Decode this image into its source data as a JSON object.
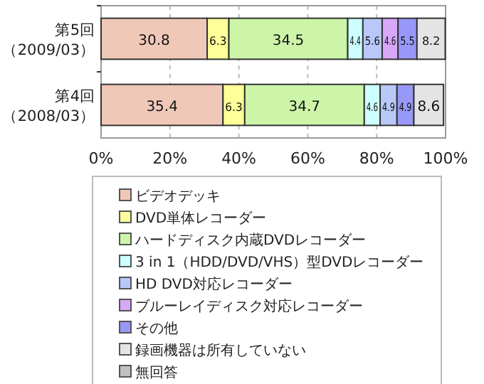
{
  "chart_data": {
    "type": "bar",
    "orientation": "horizontal",
    "stacked": true,
    "data_labels": true,
    "grid": "x",
    "legend": "bottom",
    "categories": [
      "第5回（2009/03）",
      "第4回（2008/03）"
    ],
    "xlim": [
      0,
      100
    ],
    "xticks": [
      {
        "value": 0,
        "label": "0%"
      },
      {
        "value": 20,
        "label": "20%"
      },
      {
        "value": 40,
        "label": "40%"
      },
      {
        "value": 60,
        "label": "60%"
      },
      {
        "value": 80,
        "label": "80%"
      },
      {
        "value": 100,
        "label": "100%"
      }
    ],
    "series": [
      {
        "name": "ビデオデッキ",
        "color": "#f0c8b8",
        "values": [
          30.8,
          35.4
        ]
      },
      {
        "name": "DVD単体レコーダー",
        "color": "#ffff99",
        "values": [
          6.3,
          6.3
        ]
      },
      {
        "name": "ハードディスク内蔵DVDレコーダー",
        "color": "#ccf5a8",
        "values": [
          34.5,
          34.7
        ]
      },
      {
        "name": "3 in 1（HDD/DVD/VHS）型DVDレコーダー",
        "color": "#ccffff",
        "values": [
          4.4,
          4.6
        ]
      },
      {
        "name": "HD DVD対応レコーダー",
        "color": "#b8c8f8",
        "values": [
          5.6,
          4.9
        ]
      },
      {
        "name": "ブルーレイディスク対応レコーダー",
        "color": "#d8a8f8",
        "values": [
          4.6,
          null
        ]
      },
      {
        "name": "その他",
        "color": "#9898f8",
        "values": [
          5.5,
          4.9
        ]
      },
      {
        "name": "録画機器は所有していない",
        "color": "#e4e4e4",
        "values": [
          8.2,
          8.6
        ]
      },
      {
        "name": "無回答",
        "color": "#c0c0c0",
        "values": [
          null,
          null
        ]
      }
    ]
  }
}
